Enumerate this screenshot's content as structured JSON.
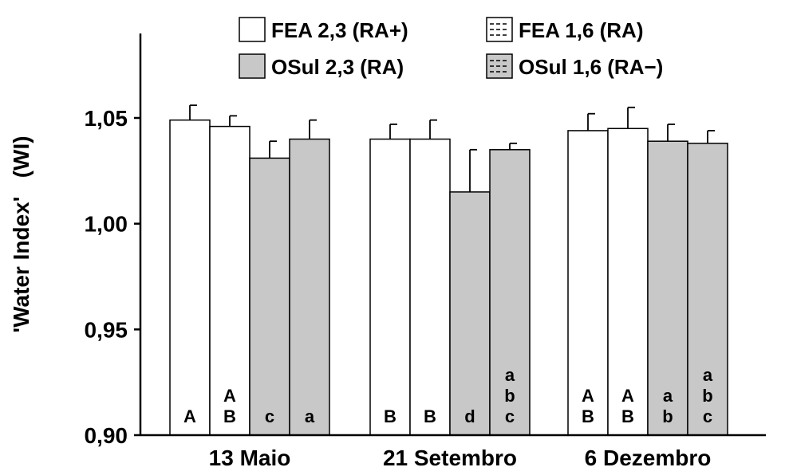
{
  "chart_data": {
    "type": "bar",
    "title": "",
    "xlabel": "",
    "ylabel": "'Water Index'   (WI)",
    "ylim": [
      0.9,
      1.09
    ],
    "yticks": [
      0.9,
      0.95,
      1.0,
      1.05
    ],
    "ytick_labels": [
      "0,90",
      "0,95",
      "1,00",
      "1,05"
    ],
    "categories": [
      "13 Maio",
      "21 Setembro",
      "6 Dezembro"
    ],
    "legend_position": "top",
    "series": [
      {
        "name": "FEA  2,3 (RA+)",
        "color": "#ffffff",
        "pattern": "none",
        "values": [
          1.049,
          1.04,
          1.044
        ],
        "errors": [
          0.007,
          0.007,
          0.008
        ],
        "letters": [
          [
            "A"
          ],
          [
            "B"
          ],
          [
            "A",
            "B"
          ]
        ]
      },
      {
        "name": "FEA  1,6 (RA)",
        "color": "#ffffff",
        "pattern": "dashed",
        "values": [
          1.046,
          1.04,
          1.045
        ],
        "errors": [
          0.005,
          0.009,
          0.01
        ],
        "letters": [
          [
            "A",
            "B"
          ],
          [
            "B"
          ],
          [
            "A",
            "B"
          ]
        ]
      },
      {
        "name": "OSul 2,3 (RA)",
        "color": "#c8c8c8",
        "pattern": "none",
        "values": [
          1.031,
          1.015,
          1.039
        ],
        "errors": [
          0.008,
          0.02,
          0.008
        ],
        "letters": [
          [
            "c"
          ],
          [
            "d"
          ],
          [
            "a",
            "b"
          ]
        ]
      },
      {
        "name": "OSul 1,6 (RA−)",
        "color": "#c8c8c8",
        "pattern": "dashed",
        "values": [
          1.04,
          1.035,
          1.038
        ],
        "errors": [
          0.009,
          0.003,
          0.006
        ],
        "letters": [
          [
            "a"
          ],
          [
            "a",
            "b",
            "c"
          ],
          [
            "a",
            "b",
            "c"
          ]
        ]
      }
    ]
  }
}
